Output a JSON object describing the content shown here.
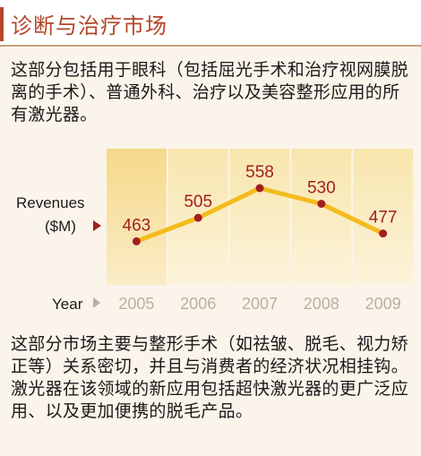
{
  "header": {
    "title": "诊断与治疗市场"
  },
  "intro_text": "这部分包括用于眼科（包括屈光手术和治疗视网膜脱离的手术）、普通外科、治疗以及美容整形应用的所有激光器。",
  "outro_text": "这部分市场主要与整形手术（如祛皱、脱毛、视力矫正等）关系密切，并且与消费者的经济状况相挂钩。激光器在该领域的新应用包括超快激光器的更广泛应用、以及更加便携的脱毛产品。",
  "colors": {
    "accent": "#b5462a",
    "line": "#f3bb1c",
    "marker": "#a11e22",
    "label": "#a11e22"
  },
  "chart_data": {
    "type": "line",
    "title": "",
    "ylabel_line1": "Revenues",
    "ylabel_line2": "($M)",
    "xlabel": "Year",
    "categories": [
      "2005",
      "2006",
      "2007",
      "2008",
      "2009"
    ],
    "series": [
      {
        "values": [
          463,
          505,
          558,
          530,
          477
        ]
      }
    ],
    "ylim": [
      430,
      590
    ],
    "grid": false,
    "legend": "none"
  }
}
